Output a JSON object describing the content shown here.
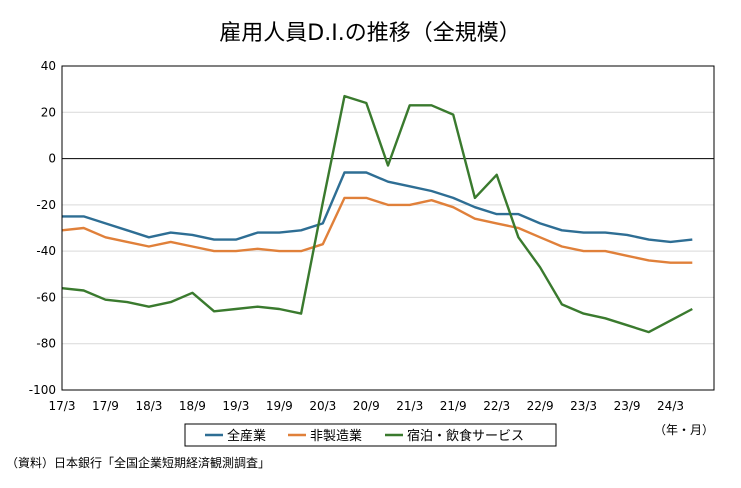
{
  "chart_data": {
    "type": "line",
    "title": "雇用人員D.I.の推移（全規模）",
    "categories": [
      "17/3",
      "17/6",
      "17/9",
      "17/12",
      "18/3",
      "18/6",
      "18/9",
      "18/12",
      "19/3",
      "19/6",
      "19/9",
      "19/12",
      "20/3",
      "20/6",
      "20/9",
      "20/12",
      "21/3",
      "21/6",
      "21/9",
      "21/12",
      "22/3",
      "22/6",
      "22/9",
      "22/12",
      "23/3",
      "23/6",
      "23/9",
      "23/12",
      "24/3",
      "24/6"
    ],
    "x_tick_labels": [
      "17/3",
      "17/9",
      "18/3",
      "18/9",
      "19/3",
      "19/9",
      "20/3",
      "20/9",
      "21/3",
      "21/9",
      "22/3",
      "22/9",
      "23/3",
      "23/9",
      "24/3"
    ],
    "ylim": [
      -100,
      40
    ],
    "yticks": [
      40,
      20,
      0,
      -20,
      -40,
      -60,
      -80,
      -100
    ],
    "xunit": "（年・月）",
    "grid": true,
    "legend_position": "bottom",
    "series": [
      {
        "name": "全産業",
        "color": "#2e6e94",
        "values": [
          -25,
          -25,
          -28,
          -31,
          -34,
          -32,
          -33,
          -35,
          -35,
          -32,
          -32,
          -31,
          -28,
          -6,
          -6,
          -10,
          -12,
          -14,
          -17,
          -21,
          -24,
          -24,
          -28,
          -31,
          -32,
          -32,
          -33,
          -35,
          -36,
          -35
        ]
      },
      {
        "name": "非製造業",
        "color": "#e0803a",
        "values": [
          -31,
          -30,
          -34,
          -36,
          -38,
          -36,
          -38,
          -40,
          -40,
          -39,
          -40,
          -40,
          -37,
          -17,
          -17,
          -20,
          -20,
          -18,
          -21,
          -26,
          -28,
          -30,
          -34,
          -38,
          -40,
          -40,
          -42,
          -44,
          -45,
          -45
        ]
      },
      {
        "name": "宿泊・飲食サービス",
        "color": "#3a7a2e",
        "values": [
          -56,
          -57,
          -61,
          -62,
          -64,
          -62,
          -58,
          -66,
          -65,
          -64,
          -65,
          -67,
          -19,
          27,
          24,
          -3,
          23,
          23,
          19,
          -17,
          -7,
          -34,
          -47,
          -63,
          -67,
          -69,
          -72,
          -75,
          -70,
          -65
        ]
      }
    ]
  },
  "source_note": "（資料）日本銀行「全国企業短期経済観測調査」"
}
